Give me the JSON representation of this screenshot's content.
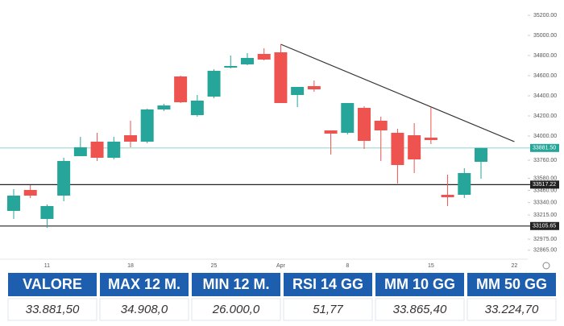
{
  "chart_data": {
    "type": "candlestick",
    "open": [
      33256,
      33464,
      33176,
      33408,
      33800,
      33944,
      33784,
      34008,
      33944,
      34264,
      34592,
      34208,
      34392,
      34680,
      34712,
      34816,
      34832,
      34408,
      34496,
      34056,
      34032,
      34280,
      34152,
      34032,
      34008,
      33984,
      33416,
      33416,
      33744
    ],
    "high": [
      33472,
      33512,
      33320,
      33784,
      33992,
      34032,
      33992,
      34152,
      34272,
      34320,
      34600,
      34408,
      34664,
      34800,
      34824,
      34872,
      34912,
      34488,
      34552,
      34056,
      34328,
      34296,
      34192,
      34072,
      34128,
      34288,
      33616,
      33680,
      33881.5
    ],
    "low": [
      33176,
      33384,
      33088,
      33352,
      33800,
      33752,
      33768,
      33888,
      33928,
      34248,
      34328,
      34192,
      34376,
      34672,
      34704,
      34752,
      34328,
      34288,
      34440,
      33816,
      34016,
      33872,
      33752,
      33528,
      33632,
      33920,
      33304,
      33384,
      33576
    ],
    "close": [
      33408,
      33408,
      33304,
      33752,
      33888,
      33784,
      33944,
      33944,
      34264,
      34304,
      34336,
      34352,
      34648,
      34696,
      34776,
      34760,
      34328,
      34488,
      34464,
      34024,
      34328,
      33952,
      34056,
      33712,
      33768,
      33960,
      33392,
      33632,
      33881.5
    ],
    "up_color": "#26a69a",
    "down_color": "#ef5350",
    "xlim": [
      -0.82,
      30.8
    ],
    "xticks": [
      {
        "value": 2,
        "label": "11"
      },
      {
        "value": 7,
        "label": "18"
      },
      {
        "value": 12,
        "label": "25"
      },
      {
        "value": 16,
        "label": "Apr"
      },
      {
        "value": 20,
        "label": "8"
      },
      {
        "value": 25,
        "label": "15"
      },
      {
        "value": 30,
        "label": "22"
      }
    ],
    "ylim": [
      32776,
      35352
    ],
    "yticks": [
      {
        "value": 35200,
        "label": "35200.00"
      },
      {
        "value": 35000,
        "label": "35000.00"
      },
      {
        "value": 34800,
        "label": "34800.00"
      },
      {
        "value": 34600,
        "label": "34600.00"
      },
      {
        "value": 34400,
        "label": "34400.00"
      },
      {
        "value": 34200,
        "label": "34200.00"
      },
      {
        "value": 34000,
        "label": "34000.00"
      },
      {
        "value": 33760,
        "label": "33760.00"
      },
      {
        "value": 33580,
        "label": "33580.00"
      },
      {
        "value": 33460,
        "label": "33460.00"
      },
      {
        "value": 33340,
        "label": "33340.00"
      },
      {
        "value": 33215,
        "label": "33215.00"
      },
      {
        "value": 32975,
        "label": "32975.00"
      },
      {
        "value": 32865,
        "label": "32865.00"
      }
    ],
    "hlines": [
      {
        "value": 33881.5,
        "label": "33881.50",
        "color": "#9ed8cf",
        "box": "#26a69a"
      },
      {
        "value": 33517.22,
        "label": "33517.22",
        "color": "#222222",
        "box": "#222222"
      },
      {
        "value": 33105.65,
        "label": "33105.65",
        "color": "#222222",
        "box": "#222222"
      }
    ],
    "trendline": {
      "x": [
        16,
        30
      ],
      "y": [
        34912,
        33944
      ],
      "color": "#333333"
    }
  },
  "table": {
    "headers": [
      "VALORE",
      "MAX 12 M.",
      "MIN 12 M.",
      "RSI 14 GG",
      "MM 10 GG",
      "MM 50 GG"
    ],
    "rows": [
      [
        "33.881,50",
        "34.908,0",
        "26.000,0",
        "51,77",
        "33.865,40",
        "33.224,70"
      ]
    ]
  }
}
